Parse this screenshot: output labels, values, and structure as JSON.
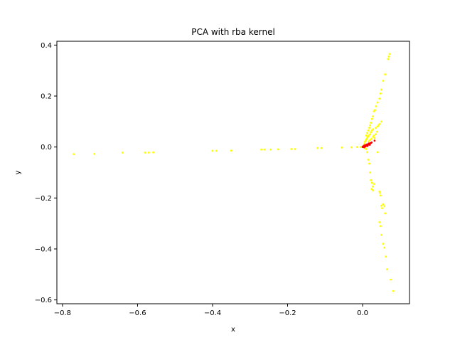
{
  "chart_data": {
    "type": "scatter",
    "title": "PCA with rba kernel",
    "xlabel": "x",
    "ylabel": "y",
    "xlim": [
      -0.815,
      0.125
    ],
    "ylim": [
      -0.615,
      0.415
    ],
    "xticks": [
      -0.8,
      -0.6,
      -0.4,
      -0.2,
      0.0
    ],
    "yticks": [
      -0.6,
      -0.4,
      -0.2,
      0.0,
      0.2,
      0.4
    ],
    "xtick_labels": [
      "−0.8",
      "−0.6",
      "−0.4",
      "−0.2",
      "0.0"
    ],
    "ytick_labels": [
      "−0.6",
      "−0.4",
      "−0.2",
      "0.0",
      "0.2",
      "0.4"
    ],
    "grid": false,
    "legend": false,
    "series": [
      {
        "color": "#ffff00",
        "points": [
          [
            -0.77,
            -0.028
          ],
          [
            -0.715,
            -0.027
          ],
          [
            -0.64,
            -0.022
          ],
          [
            -0.58,
            -0.022
          ],
          [
            -0.57,
            -0.022
          ],
          [
            -0.558,
            -0.021
          ],
          [
            -0.4,
            -0.015
          ],
          [
            -0.39,
            -0.015
          ],
          [
            -0.35,
            -0.014
          ],
          [
            -0.27,
            -0.01
          ],
          [
            -0.262,
            -0.01
          ],
          [
            -0.245,
            -0.01
          ],
          [
            -0.225,
            -0.009
          ],
          [
            -0.19,
            -0.008
          ],
          [
            -0.18,
            -0.008
          ],
          [
            -0.12,
            -0.004
          ],
          [
            -0.11,
            -0.004
          ],
          [
            -0.055,
            -0.002
          ],
          [
            -0.03,
            -0.001
          ],
          [
            -0.015,
            0.0
          ],
          [
            -0.005,
            0.0
          ],
          [
            0.072,
            0.365
          ],
          [
            0.07,
            0.355
          ],
          [
            0.068,
            0.345
          ],
          [
            0.06,
            0.285
          ],
          [
            0.055,
            0.26
          ],
          [
            0.05,
            0.225
          ],
          [
            0.048,
            0.21
          ],
          [
            0.045,
            0.19
          ],
          [
            0.04,
            0.175
          ],
          [
            0.036,
            0.16
          ],
          [
            0.033,
            0.145
          ],
          [
            0.03,
            0.14
          ],
          [
            0.027,
            0.12
          ],
          [
            0.025,
            0.11
          ],
          [
            0.022,
            0.095
          ],
          [
            0.05,
            0.1
          ],
          [
            0.045,
            0.09
          ],
          [
            0.042,
            0.085
          ],
          [
            0.04,
            0.08
          ],
          [
            0.035,
            0.075
          ],
          [
            0.02,
            0.085
          ],
          [
            0.018,
            0.075
          ],
          [
            0.015,
            0.065
          ],
          [
            0.012,
            0.055
          ],
          [
            0.01,
            0.045
          ],
          [
            0.028,
            0.07
          ],
          [
            0.025,
            0.065
          ],
          [
            0.022,
            0.058
          ],
          [
            0.02,
            0.05
          ],
          [
            0.017,
            0.045
          ],
          [
            0.014,
            0.04
          ],
          [
            0.012,
            0.035
          ],
          [
            0.01,
            0.03
          ],
          [
            0.008,
            0.025
          ],
          [
            0.006,
            0.02
          ],
          [
            0.03,
            0.045
          ],
          [
            0.028,
            0.04
          ],
          [
            0.024,
            0.032
          ],
          [
            0.02,
            0.028
          ],
          [
            0.016,
            0.022
          ],
          [
            0.035,
            0.05
          ],
          [
            0.038,
            0.06
          ],
          [
            0.032,
            0.035
          ],
          [
            0.005,
            0.012
          ],
          [
            0.004,
            0.008
          ],
          [
            0.012,
            -0.02
          ],
          [
            0.015,
            -0.05
          ],
          [
            0.018,
            -0.065
          ],
          [
            0.02,
            -0.1
          ],
          [
            0.022,
            -0.13
          ],
          [
            0.025,
            -0.14
          ],
          [
            0.027,
            -0.155
          ],
          [
            0.03,
            -0.145
          ],
          [
            0.024,
            -0.165
          ],
          [
            0.028,
            -0.17
          ],
          [
            0.045,
            -0.175
          ],
          [
            0.046,
            -0.18
          ],
          [
            0.048,
            -0.19
          ],
          [
            0.05,
            -0.23
          ],
          [
            0.052,
            -0.24
          ],
          [
            0.055,
            -0.225
          ],
          [
            0.058,
            -0.232
          ],
          [
            0.06,
            -0.26
          ],
          [
            0.045,
            -0.295
          ],
          [
            0.048,
            -0.31
          ],
          [
            0.05,
            -0.345
          ],
          [
            0.055,
            -0.38
          ],
          [
            0.058,
            -0.395
          ],
          [
            0.062,
            -0.43
          ],
          [
            0.065,
            -0.48
          ],
          [
            0.075,
            -0.52
          ],
          [
            0.082,
            -0.565
          ],
          [
            0.01,
            -0.008
          ],
          [
            0.006,
            -0.004
          ],
          [
            0.04,
            -0.02
          ]
        ]
      },
      {
        "color": "#ff0000",
        "points": [
          [
            0.0,
            0.0
          ],
          [
            0.002,
            0.001
          ],
          [
            0.004,
            0.002
          ],
          [
            0.006,
            0.003
          ],
          [
            0.008,
            0.004
          ],
          [
            0.01,
            0.005
          ],
          [
            0.012,
            0.006
          ],
          [
            0.014,
            0.008
          ],
          [
            0.016,
            0.01
          ],
          [
            0.018,
            0.012
          ],
          [
            0.02,
            0.014
          ],
          [
            0.022,
            0.016
          ],
          [
            0.024,
            0.018
          ],
          [
            0.003,
            0.004
          ],
          [
            0.005,
            0.006
          ],
          [
            0.009,
            0.008
          ],
          [
            0.011,
            0.01
          ],
          [
            0.007,
            0.002
          ],
          [
            0.013,
            0.004
          ],
          [
            0.001,
            0.002
          ],
          [
            0.015,
            0.012
          ],
          [
            0.017,
            0.014
          ],
          [
            0.032,
            0.025
          ],
          [
            0.019,
            0.009
          ],
          [
            0.004,
            -0.001
          ]
        ]
      }
    ]
  }
}
